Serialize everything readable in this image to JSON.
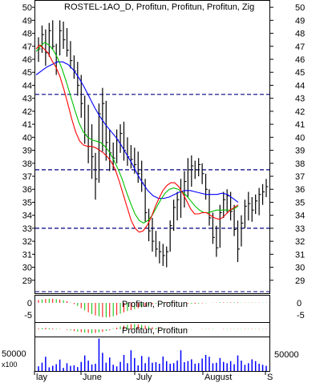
{
  "chart_data": {
    "type": "line",
    "title": "ROSTEL-1AO_D, Profitun, Profitun, Profitun, Zig",
    "price_axis": {
      "ylim": [
        28,
        50.5
      ],
      "ticks": [
        29,
        30,
        31,
        32,
        33,
        34,
        35,
        36,
        37,
        38,
        39,
        40,
        41,
        42,
        43,
        44,
        45,
        46,
        47,
        48,
        49,
        50
      ]
    },
    "reference_lines": [
      43.3,
      37.5,
      33.0
    ],
    "x_labels": [
      "lay",
      "June",
      "July",
      "August",
      "S"
    ],
    "colors": {
      "price": "#000000",
      "ma_fast": "#ff0000",
      "ma_mid": "#00c000",
      "ma_slow": "#0000ff",
      "reference": "#000080",
      "volume": "#0000ff",
      "osc_neg": "#ff0000",
      "osc_pos": "#00c000"
    },
    "price_bars": [
      [
        45.8,
        47.7,
        46.8
      ],
      [
        46.5,
        48.6,
        47.9
      ],
      [
        45.5,
        48.3,
        46.5
      ],
      [
        46.2,
        48.8,
        48.2
      ],
      [
        46.8,
        49.0,
        47.0
      ],
      [
        44.8,
        47.2,
        45.8
      ],
      [
        46.3,
        49.0,
        48.2
      ],
      [
        46.8,
        48.9,
        47.5
      ],
      [
        46.2,
        48.4,
        46.7
      ],
      [
        45.3,
        47.4,
        45.9
      ],
      [
        44.5,
        46.3,
        45.1
      ],
      [
        43.2,
        45.8,
        44.0
      ],
      [
        41.5,
        44.8,
        42.6
      ],
      [
        39.5,
        43.2,
        40.2
      ],
      [
        38.0,
        42.5,
        39.3
      ],
      [
        36.8,
        41.0,
        38.5
      ],
      [
        35.2,
        38.8,
        36.8
      ],
      [
        36.5,
        42.6,
        41.8
      ],
      [
        38.9,
        43.8,
        42.6
      ],
      [
        38.2,
        42.8,
        39.6
      ],
      [
        37.4,
        40.6,
        38.8
      ],
      [
        37.5,
        39.6,
        38.4
      ],
      [
        38.0,
        40.6,
        39.8
      ],
      [
        38.8,
        41.0,
        40.3
      ],
      [
        38.2,
        41.2,
        39.0
      ],
      [
        37.8,
        40.0,
        38.5
      ],
      [
        37.6,
        39.4,
        38.3
      ],
      [
        37.2,
        39.2,
        37.9
      ],
      [
        36.5,
        38.9,
        37.2
      ],
      [
        35.8,
        38.2,
        36.5
      ],
      [
        33.5,
        36.8,
        34.2
      ],
      [
        32.0,
        34.5,
        32.8
      ],
      [
        31.2,
        33.8,
        32.0
      ],
      [
        30.8,
        32.8,
        31.4
      ],
      [
        30.3,
        32.0,
        31.2
      ],
      [
        30.1,
        31.8,
        30.9
      ],
      [
        30.0,
        31.6,
        31.2
      ],
      [
        31.2,
        33.6,
        33.2
      ],
      [
        32.8,
        35.2,
        34.6
      ],
      [
        33.6,
        35.8,
        35.2
      ],
      [
        33.8,
        36.8,
        35.8
      ],
      [
        34.6,
        37.4,
        36.6
      ],
      [
        35.4,
        38.4,
        37.5
      ],
      [
        36.2,
        38.6,
        37.8
      ],
      [
        36.8,
        38.2,
        37.5
      ],
      [
        37.0,
        38.4,
        37.9
      ],
      [
        36.4,
        38.0,
        37.2
      ],
      [
        35.2,
        37.2,
        36.0
      ],
      [
        33.2,
        36.0,
        33.8
      ],
      [
        31.8,
        34.2,
        32.3
      ],
      [
        30.8,
        33.2,
        31.5
      ],
      [
        31.5,
        34.8,
        34.2
      ],
      [
        33.8,
        35.8,
        35.2
      ],
      [
        34.2,
        36.0,
        35.5
      ],
      [
        33.6,
        35.8,
        34.3
      ],
      [
        32.4,
        34.8,
        32.9
      ],
      [
        30.4,
        33.6,
        31.4
      ],
      [
        31.6,
        34.0,
        33.4
      ],
      [
        33.0,
        35.2,
        34.7
      ],
      [
        33.6,
        35.8,
        34.9
      ],
      [
        33.5,
        35.4,
        34.4
      ],
      [
        34.1,
        35.6,
        35.1
      ],
      [
        34.0,
        36.1,
        35.6
      ],
      [
        34.8,
        36.4,
        35.8
      ],
      [
        35.4,
        36.8,
        36.2
      ]
    ],
    "ma_fast": [
      46.8,
      47.1,
      46.8,
      46.5,
      45.9,
      45.4,
      44.7,
      43.7,
      42.6,
      41.4,
      40.4,
      39.7,
      39.4,
      39.3,
      39.3,
      39.2,
      39.0,
      38.8,
      38.5,
      38.1,
      37.5,
      36.6,
      35.6,
      34.6,
      33.6,
      33.0,
      32.7,
      32.8,
      33.2,
      33.8,
      34.6,
      35.3,
      35.9,
      36.3,
      36.5,
      36.5,
      36.2,
      35.7,
      35.1,
      34.5,
      34.1,
      34.1,
      34.2,
      34.2,
      34.0,
      33.8,
      33.7,
      33.8,
      34.1,
      34.4,
      34.6,
      34.8
    ],
    "ma_mid": [
      46.6,
      47.0,
      47.3,
      47.1,
      46.7,
      46.1,
      45.3,
      44.3,
      43.2,
      42.1,
      41.1,
      40.4,
      40.0,
      39.8,
      39.7,
      39.6,
      39.3,
      38.9,
      38.3,
      37.6,
      36.8,
      35.8,
      34.9,
      34.1,
      33.6,
      33.4,
      33.6,
      34.0,
      34.6,
      35.2,
      35.7,
      36.0,
      36.1,
      36.0,
      35.8,
      35.5,
      35.1,
      34.7,
      34.4,
      34.2,
      34.2,
      34.3,
      34.4,
      34.4,
      34.4,
      34.4,
      34.5,
      34.7
    ],
    "ma_slow": [
      44.8,
      45.1,
      45.4,
      45.6,
      45.8,
      45.8,
      45.6,
      45.2,
      44.6,
      43.9,
      43.1,
      42.3,
      41.6,
      41.0,
      40.5,
      40.0,
      39.4,
      38.7,
      38.0,
      37.2,
      36.5,
      35.9,
      35.5,
      35.3,
      35.3,
      35.4,
      35.6,
      35.8,
      35.9,
      35.9,
      35.8,
      35.7,
      35.6,
      35.6,
      35.6,
      35.7,
      35.6,
      35.3,
      35.0
    ],
    "osc1": {
      "ticks": [
        0,
        -5
      ],
      "ylim": [
        -8,
        3
      ],
      "label": "Profitun, Profitun",
      "values": [
        1.2,
        1.4,
        1.6,
        1.7,
        1.7,
        1.6,
        1.4,
        1.1,
        0.7,
        0.2,
        -0.5,
        -1.3,
        -2.2,
        -3.1,
        -3.9,
        -4.6,
        -5.2,
        -5.6,
        -5.9,
        -6.0,
        -5.9,
        -5.6,
        -5.1,
        -4.5,
        -3.9,
        -3.4,
        -3.0,
        -2.6,
        -2.2,
        -1.8,
        -1.4,
        -1.0,
        -0.6,
        -0.3,
        0.0,
        0.2,
        0.3,
        0.3,
        0.2,
        0.1,
        0.0,
        -0.2,
        -0.3,
        -0.4,
        -0.4,
        -0.3,
        -0.2,
        -0.1,
        0.0,
        0.1,
        0.1,
        0.2,
        0.2,
        0.2,
        0.2,
        0.2,
        0.2,
        0.1,
        0.1,
        0.1,
        0.1,
        0.1,
        0.1,
        0.1,
        0.1
      ]
    },
    "osc2": {
      "label": "Profitun, Profitun",
      "values": [
        0.3,
        0.4,
        0.5,
        0.4,
        0.3,
        0.2,
        0.1,
        0.0,
        -0.2,
        -0.4,
        -0.6,
        -0.8,
        -1.0,
        -1.2,
        -1.3,
        -1.4,
        -1.3,
        -1.1,
        -0.9,
        -0.6,
        -0.3,
        0.2,
        0.6,
        1.0,
        1.3,
        1.6,
        1.8,
        1.9,
        1.8,
        1.6,
        1.3,
        1.0,
        0.7,
        0.5,
        0.3,
        0.2,
        0.1,
        0.0,
        -0.1,
        -0.2,
        -0.2,
        -0.2,
        -0.1,
        -0.1,
        0.0,
        0.0,
        0.1,
        0.1,
        0.1,
        0.1,
        0.0,
        0.0,
        0.1,
        0.1,
        0.1,
        0.1,
        0.1,
        0.1,
        0.1,
        0.1,
        0.1,
        0.1,
        0.1,
        0.1,
        0.1
      ]
    },
    "volume": {
      "tick_label": "50000",
      "unit_label": "x100",
      "ylim": [
        0,
        130000
      ],
      "values": [
        18000,
        32000,
        55000,
        14000,
        20000,
        26000,
        44000,
        12000,
        30000,
        20000,
        22000,
        15000,
        35000,
        60000,
        40000,
        25000,
        28000,
        125000,
        70000,
        32000,
        52000,
        24000,
        18000,
        35000,
        62000,
        30000,
        80000,
        50000,
        22000,
        58000,
        30000,
        54000,
        32000,
        34000,
        28000,
        56000,
        38000,
        28000,
        30000,
        40000,
        80000,
        34000,
        38000,
        45000,
        28000,
        30000,
        48000,
        62000,
        55000,
        30000,
        32000,
        50000,
        35000,
        30000,
        38000,
        26000,
        60000,
        40000,
        24000,
        30000,
        45000,
        38000,
        28000,
        24000,
        20000
      ]
    }
  }
}
